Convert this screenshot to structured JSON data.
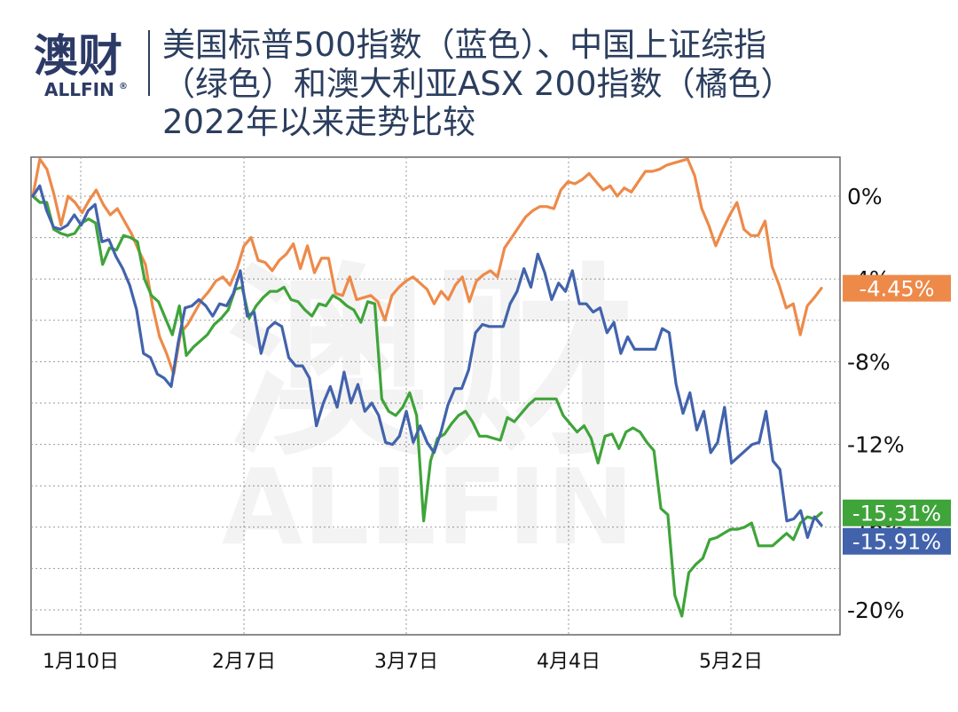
{
  "header": {
    "logo_cn": "澳财",
    "logo_en": "ALLFIN",
    "logo_reg": "®",
    "title_lines": [
      "美国标普500指数（蓝色）、中国上证综指",
      "（绿色）和澳大利亚ASX 200指数（橘色）",
      "2022年以来走势比较"
    ]
  },
  "watermark": {
    "cn": "澳财",
    "en": "ALLFIN"
  },
  "colors": {
    "sp500": "#4263ac",
    "shanghai": "#3fa43a",
    "asx200": "#ed8a49",
    "title": "#2b3e5e"
  },
  "chart_data": {
    "type": "line",
    "title": "美国标普500指数（蓝色）、中国上证综指（绿色）和澳大利亚ASX 200指数（橘色）2022年以来走势比较",
    "x_ticks": [
      "1月10日",
      "2月7日",
      "3月7日",
      "4月4日",
      "5月2日"
    ],
    "y_ticks": [
      "0%",
      "-4%",
      "-8%",
      "-12%",
      "-16%",
      "-20%"
    ],
    "ylim": [
      -21.2,
      3.7
    ],
    "grid": true,
    "series": [
      {
        "key": "asx200",
        "color": "#ed8a49",
        "end_label": "-4.45%",
        "values": [
          0,
          1.8,
          1.3,
          0.1,
          -1.4,
          0,
          -0.3,
          -0.8,
          -0.2,
          0.3,
          -0.4,
          -0.9,
          -0.6,
          -1.2,
          -1.8,
          -2.6,
          -3.3,
          -5.3,
          -6.8,
          -7.6,
          -8.6,
          -6.6,
          -6.2,
          -5.6,
          -5.0,
          -4.6,
          -4.1,
          -3.9,
          -4.3,
          -3.5,
          -2.4,
          -2.0,
          -3.1,
          -3.2,
          -3.6,
          -3.1,
          -2.8,
          -2.3,
          -3.5,
          -2.4,
          -3.7,
          -3.0,
          -3.0,
          -4.7,
          -4.8,
          -3.9,
          -5.0,
          -4.9,
          -4.8,
          -5.1,
          -6.0,
          -4.8,
          -4.4,
          -4.1,
          -3.9,
          -4.2,
          -4.5,
          -5.2,
          -4.6,
          -5.0,
          -4.3,
          -3.9,
          -5.1,
          -4.1,
          -3.8,
          -3.6,
          -3.9,
          -2.5,
          -2.0,
          -1.5,
          -1.0,
          -0.7,
          -0.5,
          -0.5,
          -0.6,
          0.3,
          0.7,
          0.6,
          0.8,
          1.1,
          0.7,
          0.3,
          0.5,
          0,
          0.4,
          0.2,
          0.7,
          1.2,
          1.2,
          1.3,
          1.5,
          1.6,
          1.7,
          1.8,
          1.0,
          -0.6,
          -1.4,
          -2.4,
          -1.6,
          -0.9,
          -0.3,
          -1.6,
          -1.9,
          -1.9,
          -1.2,
          -3.4,
          -4.3,
          -5.4,
          -5.2,
          -6.7,
          -5.3,
          -4.9,
          -4.45
        ]
      },
      {
        "key": "shanghai",
        "color": "#3fa43a",
        "end_label": "-15.31%",
        "values": [
          0,
          -0.3,
          -0.3,
          -1.6,
          -1.8,
          -1.9,
          -1.8,
          -1.3,
          -1.1,
          -1.3,
          -3.3,
          -2.5,
          -2.6,
          -1.9,
          -2.0,
          -2.2,
          -4.0,
          -4.8,
          -5.1,
          -5.9,
          -6.7,
          -5.3,
          -7.7,
          -7.3,
          -7.0,
          -6.7,
          -6.2,
          -5.9,
          -5.5,
          -4.5,
          -4.4,
          -5.9,
          -5.3,
          -4.9,
          -4.6,
          -4.6,
          -4.4,
          -5.0,
          -5.1,
          -5.5,
          -5.8,
          -5.2,
          -5.3,
          -4.8,
          -5.0,
          -5.3,
          -5.5,
          -6.1,
          -5.1,
          -5.2,
          -9.8,
          -10.4,
          -10.6,
          -10.2,
          -9.5,
          -10.6,
          -15.7,
          -12.8,
          -11.7,
          -11.5,
          -11.0,
          -10.6,
          -10.4,
          -10.9,
          -11.6,
          -11.6,
          -11.7,
          -11.8,
          -10.7,
          -10.9,
          -10.5,
          -10.1,
          -9.8,
          -9.8,
          -9.8,
          -9.8,
          -10.6,
          -11.0,
          -11.4,
          -11.1,
          -11.7,
          -12.9,
          -11.6,
          -11.5,
          -12.2,
          -11.4,
          -11.2,
          -11.4,
          -11.9,
          -12.3,
          -15.1,
          -15.4,
          -19.3,
          -20.3,
          -18.2,
          -17.8,
          -17.5,
          -16.6,
          -16.5,
          -16.3,
          -16.1,
          -16.1,
          -16.0,
          -15.8,
          -16.9,
          -16.9,
          -16.9,
          -16.6,
          -16.3,
          -16.6,
          -15.8,
          -15.5,
          -15.6,
          -15.31
        ]
      },
      {
        "key": "sp500",
        "color": "#4263ac",
        "end_label": "-15.91%",
        "values": [
          0,
          0.5,
          -0.7,
          -1.5,
          -1.6,
          -1.4,
          -0.9,
          -1.4,
          -0.7,
          -0.4,
          -2.2,
          -2.1,
          -2.9,
          -3.5,
          -4.3,
          -5.5,
          -7.6,
          -7.8,
          -8.6,
          -8.8,
          -9.2,
          -7.1,
          -5.4,
          -5.3,
          -5.0,
          -5.3,
          -5.8,
          -5.2,
          -5.3,
          -4.7,
          -3.6,
          -5.8,
          -5.6,
          -7.6,
          -6.4,
          -6.1,
          -6.3,
          -7.8,
          -8.2,
          -8.2,
          -8.8,
          -11.1,
          -10.0,
          -9.2,
          -10.2,
          -8.5,
          -10.0,
          -9.1,
          -10.4,
          -10.0,
          -10.6,
          -11.9,
          -12.0,
          -11.6,
          -10.4,
          -11.9,
          -11.1,
          -11.9,
          -12.4,
          -11.4,
          -10.1,
          -9.3,
          -9.3,
          -8.4,
          -6.6,
          -6.2,
          -6.3,
          -6.3,
          -6.3,
          -5.2,
          -4.6,
          -3.5,
          -4.4,
          -2.8,
          -3.7,
          -5.0,
          -4.2,
          -4.6,
          -3.6,
          -5.2,
          -5.2,
          -5.6,
          -5.4,
          -6.6,
          -6.1,
          -7.6,
          -6.8,
          -7.4,
          -7.4,
          -7.4,
          -7.4,
          -6.4,
          -6.6,
          -9.1,
          -10.5,
          -9.5,
          -11.3,
          -10.4,
          -12.4,
          -11.9,
          -10.2,
          -12.9,
          -12.6,
          -12.3,
          -12.0,
          -11.9,
          -10.4,
          -12.8,
          -13.2,
          -15.7,
          -15.6,
          -15.2,
          -16.5,
          -15.5,
          -15.91
        ]
      }
    ]
  }
}
